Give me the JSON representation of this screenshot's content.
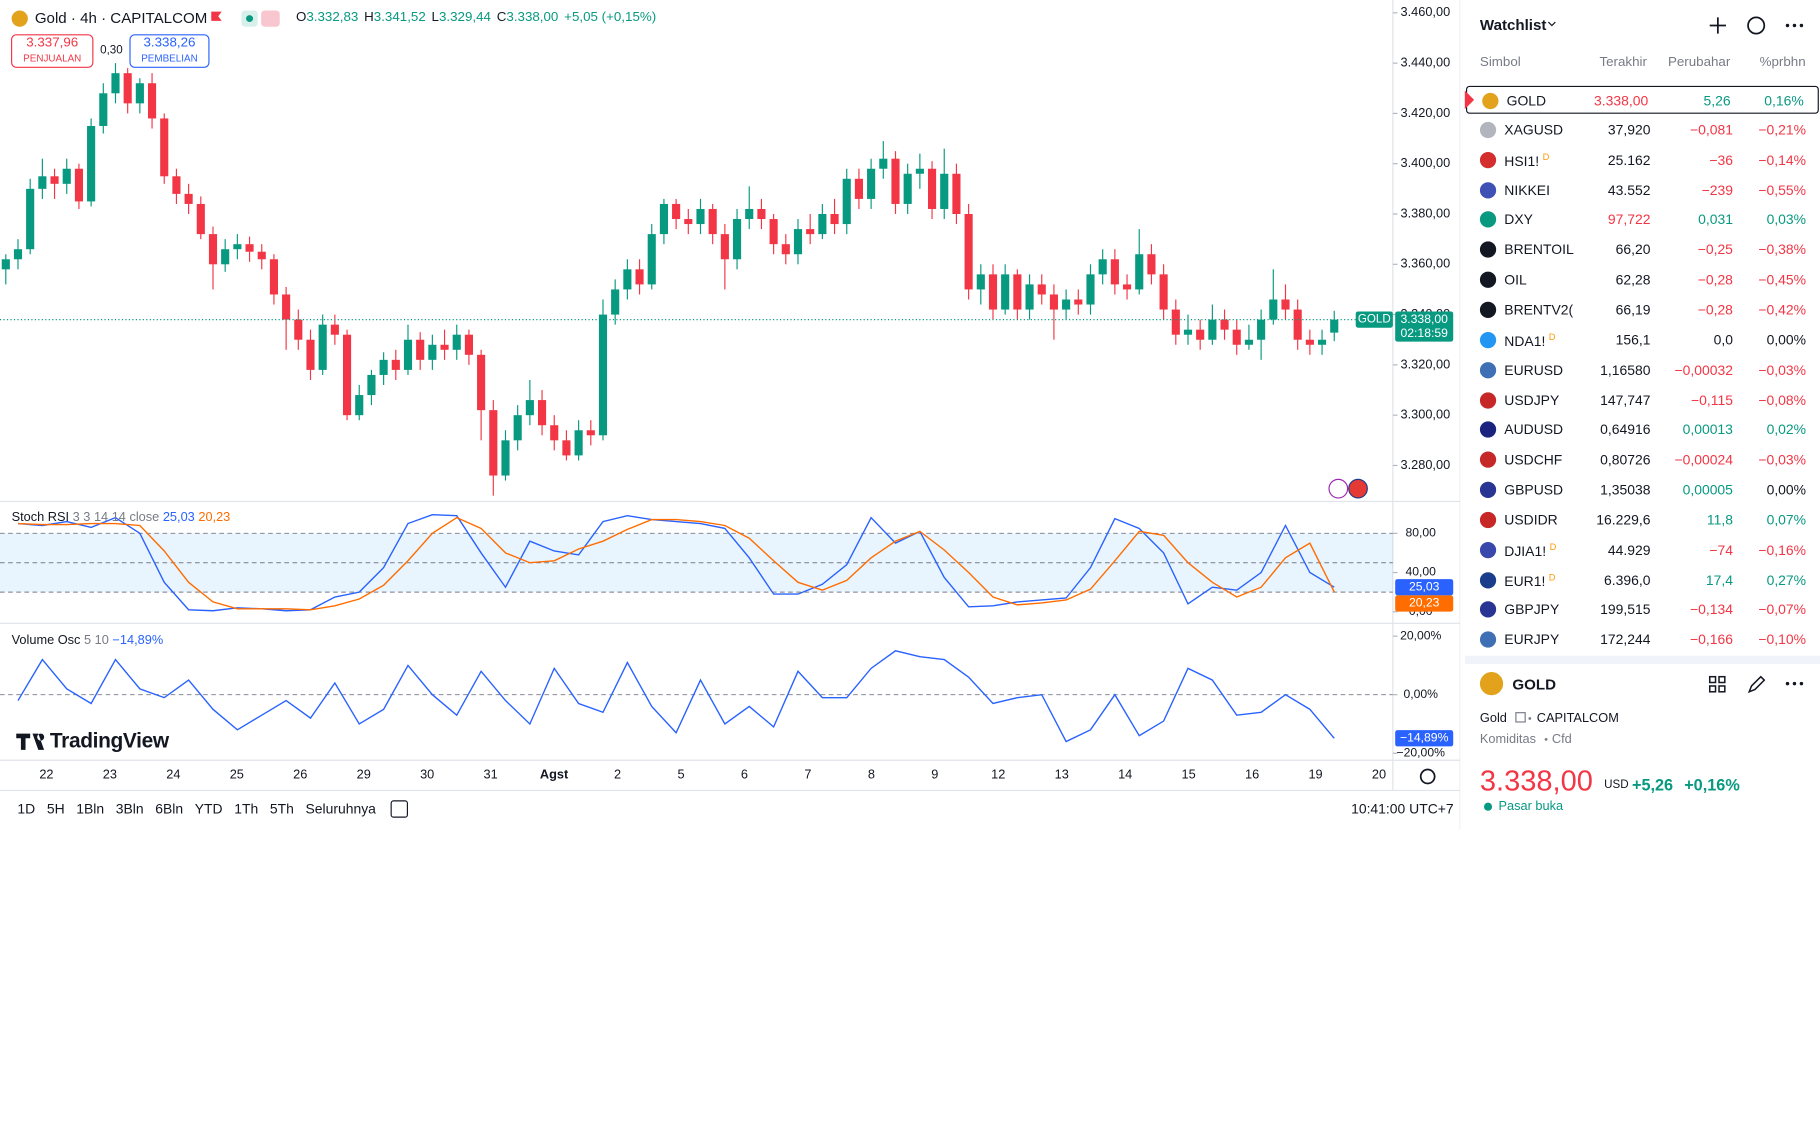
{
  "header": {
    "title": "Gold · 4h · CAPITALCOM",
    "ohlc": [
      {
        "label": "O",
        "value": "3.332,83"
      },
      {
        "label": "H",
        "value": "3.341,52"
      },
      {
        "label": "L",
        "value": "3.329,44"
      },
      {
        "label": "C",
        "value": "3.338,00"
      }
    ],
    "change": "+5,05 (+0,15%)"
  },
  "sell": {
    "price": "3.337,96",
    "label": "PENJUALAN"
  },
  "spread": "0,30",
  "buy": {
    "price": "3.338,26",
    "label": "PEMBELIAN"
  },
  "chart": {
    "type": "candlestick",
    "up_color": "#089981",
    "down_color": "#f23645",
    "ylim": [
      3265.7,
      3465.1
    ],
    "yticks": [
      {
        "value": 3280,
        "label": "3.280,00"
      },
      {
        "value": 3300,
        "label": "3.300,00"
      },
      {
        "value": 3320,
        "label": "3.320,00"
      },
      {
        "value": 3340,
        "label": "3.340,00"
      },
      {
        "value": 3360,
        "label": "3.360,00"
      },
      {
        "value": 3380,
        "label": "3.380,00"
      },
      {
        "value": 3400,
        "label": "3.400,00"
      },
      {
        "value": 3420,
        "label": "3.420,00"
      },
      {
        "value": 3440,
        "label": "3.440,00"
      },
      {
        "value": 3460,
        "label": "3.460,00"
      }
    ],
    "x_labels": [
      "22",
      "23",
      "24",
      "25",
      "26",
      "29",
      "30",
      "31",
      "Agst",
      "2",
      "5",
      "6",
      "7",
      "8",
      "9",
      "12",
      "13",
      "14",
      "15",
      "16",
      "19",
      "20"
    ],
    "last_price": {
      "name": "GOLD",
      "value": 3338,
      "label": "3.338,00",
      "countdown": "02:18:59"
    },
    "candles": [
      [
        3358,
        3364,
        3352,
        3362
      ],
      [
        3362,
        3370,
        3358,
        3366
      ],
      [
        3366,
        3394,
        3364,
        3390
      ],
      [
        3390,
        3402,
        3386,
        3395
      ],
      [
        3395,
        3398,
        3386,
        3392
      ],
      [
        3392,
        3402,
        3388,
        3398
      ],
      [
        3398,
        3400,
        3382,
        3385
      ],
      [
        3385,
        3418,
        3383,
        3415
      ],
      [
        3415,
        3432,
        3412,
        3428
      ],
      [
        3428,
        3440,
        3424,
        3436
      ],
      [
        3436,
        3438,
        3420,
        3424
      ],
      [
        3424,
        3434,
        3420,
        3432
      ],
      [
        3432,
        3436,
        3414,
        3418
      ],
      [
        3418,
        3420,
        3392,
        3395
      ],
      [
        3395,
        3398,
        3384,
        3388
      ],
      [
        3388,
        3392,
        3380,
        3384
      ],
      [
        3384,
        3387,
        3370,
        3372
      ],
      [
        3372,
        3375,
        3350,
        3360
      ],
      [
        3360,
        3370,
        3357,
        3366
      ],
      [
        3366,
        3372,
        3362,
        3368
      ],
      [
        3368,
        3371,
        3361,
        3365
      ],
      [
        3365,
        3368,
        3358,
        3362
      ],
      [
        3362,
        3364,
        3344,
        3348
      ],
      [
        3348,
        3351,
        3326,
        3338
      ],
      [
        3338,
        3342,
        3326,
        3330
      ],
      [
        3330,
        3334,
        3314,
        3318
      ],
      [
        3318,
        3340,
        3316,
        3336
      ],
      [
        3336,
        3340,
        3328,
        3332
      ],
      [
        3332,
        3334,
        3298,
        3300
      ],
      [
        3300,
        3312,
        3298,
        3308
      ],
      [
        3308,
        3318,
        3304,
        3316
      ],
      [
        3316,
        3325,
        3312,
        3322
      ],
      [
        3322,
        3326,
        3314,
        3318
      ],
      [
        3318,
        3336,
        3316,
        3330
      ],
      [
        3330,
        3333,
        3318,
        3322
      ],
      [
        3322,
        3332,
        3318,
        3328
      ],
      [
        3328,
        3334,
        3322,
        3326
      ],
      [
        3326,
        3336,
        3322,
        3332
      ],
      [
        3332,
        3334,
        3320,
        3324
      ],
      [
        3324,
        3326,
        3290,
        3302
      ],
      [
        3302,
        3306,
        3268,
        3276
      ],
      [
        3276,
        3294,
        3274,
        3290
      ],
      [
        3290,
        3304,
        3286,
        3300
      ],
      [
        3300,
        3314,
        3296,
        3306
      ],
      [
        3306,
        3310,
        3292,
        3296
      ],
      [
        3296,
        3300,
        3286,
        3290
      ],
      [
        3290,
        3294,
        3282,
        3284
      ],
      [
        3284,
        3298,
        3282,
        3294
      ],
      [
        3294,
        3298,
        3288,
        3292
      ],
      [
        3292,
        3346,
        3290,
        3340
      ],
      [
        3340,
        3354,
        3336,
        3350
      ],
      [
        3350,
        3362,
        3346,
        3358
      ],
      [
        3358,
        3362,
        3348,
        3352
      ],
      [
        3352,
        3376,
        3350,
        3372
      ],
      [
        3372,
        3386,
        3368,
        3384
      ],
      [
        3384,
        3386,
        3374,
        3378
      ],
      [
        3378,
        3382,
        3372,
        3376
      ],
      [
        3376,
        3386,
        3372,
        3382
      ],
      [
        3382,
        3384,
        3368,
        3372
      ],
      [
        3372,
        3376,
        3350,
        3362
      ],
      [
        3362,
        3382,
        3358,
        3378
      ],
      [
        3378,
        3391,
        3374,
        3382
      ],
      [
        3382,
        3386,
        3374,
        3378
      ],
      [
        3378,
        3380,
        3364,
        3368
      ],
      [
        3368,
        3372,
        3360,
        3364
      ],
      [
        3364,
        3378,
        3360,
        3374
      ],
      [
        3374,
        3380,
        3368,
        3372
      ],
      [
        3372,
        3384,
        3370,
        3380
      ],
      [
        3380,
        3386,
        3372,
        3376
      ],
      [
        3376,
        3398,
        3372,
        3394
      ],
      [
        3394,
        3398,
        3382,
        3386
      ],
      [
        3386,
        3402,
        3382,
        3398
      ],
      [
        3398,
        3409,
        3394,
        3402
      ],
      [
        3402,
        3405,
        3380,
        3384
      ],
      [
        3384,
        3400,
        3380,
        3396
      ],
      [
        3396,
        3404,
        3390,
        3398
      ],
      [
        3398,
        3401,
        3378,
        3382
      ],
      [
        3382,
        3406,
        3378,
        3396
      ],
      [
        3396,
        3400,
        3376,
        3380
      ],
      [
        3380,
        3384,
        3346,
        3350
      ],
      [
        3350,
        3360,
        3344,
        3356
      ],
      [
        3356,
        3360,
        3338,
        3342
      ],
      [
        3342,
        3360,
        3340,
        3356
      ],
      [
        3356,
        3358,
        3338,
        3342
      ],
      [
        3342,
        3356,
        3338,
        3352
      ],
      [
        3352,
        3356,
        3344,
        3348
      ],
      [
        3348,
        3352,
        3330,
        3342
      ],
      [
        3342,
        3350,
        3338,
        3346
      ],
      [
        3346,
        3350,
        3340,
        3344
      ],
      [
        3344,
        3360,
        3340,
        3356
      ],
      [
        3356,
        3366,
        3352,
        3362
      ],
      [
        3362,
        3366,
        3348,
        3352
      ],
      [
        3352,
        3356,
        3346,
        3350
      ],
      [
        3350,
        3374,
        3348,
        3364
      ],
      [
        3364,
        3368,
        3352,
        3356
      ],
      [
        3356,
        3360,
        3338,
        3342
      ],
      [
        3342,
        3346,
        3328,
        3332
      ],
      [
        3332,
        3340,
        3328,
        3334
      ],
      [
        3334,
        3338,
        3326,
        3330
      ],
      [
        3330,
        3344,
        3328,
        3338
      ],
      [
        3338,
        3342,
        3330,
        3334
      ],
      [
        3334,
        3338,
        3324,
        3328
      ],
      [
        3328,
        3336,
        3326,
        3330
      ],
      [
        3330,
        3342,
        3322,
        3338
      ],
      [
        3338,
        3358,
        3336,
        3346
      ],
      [
        3346,
        3352,
        3338,
        3342
      ],
      [
        3342,
        3346,
        3326,
        3330
      ],
      [
        3330,
        3334,
        3324,
        3328
      ],
      [
        3328,
        3334,
        3324,
        3330
      ],
      [
        3332.83,
        3341.52,
        3329.44,
        3338
      ]
    ]
  },
  "stoch_rsi": {
    "type": "line",
    "title": "Stoch RSI",
    "params": "3 3 14 14 close",
    "ylim": [
      -13,
      109
    ],
    "yticks": [
      {
        "value": 80,
        "label": "80,00"
      },
      {
        "value": 40,
        "label": "40,00"
      },
      {
        "value": 0,
        "label": "0,00"
      }
    ],
    "band_levels": [
      80,
      50,
      20
    ],
    "series": [
      {
        "name": "K",
        "color": "#2962ff",
        "value_label": "25,03",
        "values": [
          90,
          88,
          92,
          86,
          96,
          80,
          30,
          2,
          1,
          4,
          3,
          1,
          2,
          15,
          20,
          45,
          90,
          99,
          98,
          60,
          25,
          72,
          62,
          58,
          92,
          98,
          94,
          92,
          90,
          85,
          55,
          18,
          18,
          28,
          48,
          96,
          70,
          82,
          35,
          5,
          6,
          10,
          12,
          14,
          45,
          95,
          85,
          60,
          8,
          25,
          22,
          40,
          88,
          40,
          25.03
        ]
      },
      {
        "name": "D",
        "color": "#ff6d00",
        "value_label": "20,23",
        "values": [
          90,
          89,
          89,
          90,
          90,
          88,
          62,
          30,
          10,
          3,
          3,
          3,
          2,
          6,
          13,
          27,
          52,
          80,
          96,
          85,
          60,
          50,
          52,
          64,
          72,
          84,
          94,
          94,
          92,
          88,
          75,
          52,
          30,
          22,
          32,
          55,
          72,
          82,
          63,
          40,
          15,
          7,
          9,
          12,
          23,
          52,
          82,
          78,
          50,
          30,
          15,
          25,
          55,
          70,
          20.23
        ]
      }
    ]
  },
  "volume_osc": {
    "type": "line",
    "title": "Volume Osc",
    "params": "5 10",
    "ylim": [
      -22.4,
      24
    ],
    "yticks": [
      {
        "value": 20,
        "label": "20,00%"
      },
      {
        "value": 0,
        "label": "0,00%"
      },
      {
        "value": -20,
        "label": "−20,00%"
      }
    ],
    "series": [
      {
        "name": "Osc",
        "color": "#2962ff",
        "value_label": "−14,89%",
        "values": [
          -2,
          12,
          2,
          -3,
          12,
          2,
          -1,
          5,
          -5,
          -12,
          -7,
          -2,
          -8,
          4,
          -10,
          -5,
          10,
          0,
          -7,
          8,
          -2,
          -10,
          9,
          -3,
          -6,
          11,
          -4,
          -13,
          5,
          -10,
          -4,
          -11,
          8,
          -1,
          -1,
          9,
          15,
          13,
          12,
          6,
          -3,
          -1,
          0,
          -16,
          -12,
          0,
          -14,
          -9,
          9,
          5,
          -7,
          -6,
          0,
          -5,
          -14.89
        ]
      }
    ]
  },
  "logo": "TradingView",
  "toolbar": {
    "ranges": [
      "1D",
      "5H",
      "1Bln",
      "3Bln",
      "6Bln",
      "YTD",
      "1Th",
      "5Th",
      "Seluruhnya"
    ],
    "time": "10:41:00 UTC+7"
  },
  "watchlist": {
    "title": "Watchlist",
    "columns": [
      "Simbol",
      "Terakhir",
      "Perubahar",
      "%prbhn"
    ],
    "rows": [
      {
        "symbol": "GOLD",
        "last": "3.338,00",
        "change": "5,26",
        "pct": "0,16%",
        "icon": "#e2a21b",
        "last_color": "#f23645"
      },
      {
        "symbol": "XAGUSD",
        "last": "37,920",
        "change": "−0,081",
        "pct": "−0,21%",
        "icon": "#b2b5be"
      },
      {
        "symbol": "HSI1!",
        "flag": "D",
        "last": "25.162",
        "change": "−36",
        "pct": "−0,14%",
        "icon": "#d32f2f"
      },
      {
        "symbol": "NIKKEI",
        "last": "43.552",
        "change": "−239",
        "pct": "−0,55%",
        "icon": "#3f51b5"
      },
      {
        "symbol": "DXY",
        "last": "97,722",
        "change": "0,031",
        "pct": "0,03%",
        "icon": "#089981",
        "last_color": "#f23645"
      },
      {
        "symbol": "BRENTOIL",
        "last": "66,20",
        "change": "−0,25",
        "pct": "−0,38%",
        "icon": "#131722"
      },
      {
        "symbol": "OIL",
        "last": "62,28",
        "change": "−0,28",
        "pct": "−0,45%",
        "icon": "#131722"
      },
      {
        "symbol": "BRENTV2(",
        "last": "66,19",
        "change": "−0,28",
        "pct": "−0,42%",
        "icon": "#131722"
      },
      {
        "symbol": "NDA1!",
        "flag": "D",
        "last": "156,1",
        "change": "0,0",
        "pct": "0,00%",
        "icon": "#2196f3"
      },
      {
        "symbol": "EURUSD",
        "last": "1,16580",
        "change": "−0,00032",
        "pct": "−0,03%",
        "icon": "#3f6fb5"
      },
      {
        "symbol": "USDJPY",
        "last": "147,747",
        "change": "−0,115",
        "pct": "−0,08%",
        "icon": "#c62828"
      },
      {
        "symbol": "AUDUSD",
        "last": "0,64916",
        "change": "0,00013",
        "pct": "0,02%",
        "icon": "#1a237e"
      },
      {
        "symbol": "USDCHF",
        "last": "0,80726",
        "change": "−0,00024",
        "pct": "−0,03%",
        "icon": "#c62828"
      },
      {
        "symbol": "GBPUSD",
        "last": "1,35038",
        "change": "0,00005",
        "pct": "0,00%",
        "icon": "#283593"
      },
      {
        "symbol": "USDIDR",
        "last": "16.229,6",
        "change": "11,8",
        "pct": "0,07%",
        "icon": "#c62828"
      },
      {
        "symbol": "DJIA1!",
        "flag": "D",
        "last": "44.929",
        "change": "−74",
        "pct": "−0,16%",
        "icon": "#3949ab"
      },
      {
        "symbol": "EUR1!",
        "flag": "D",
        "last": "6.396,0",
        "change": "17,4",
        "pct": "0,27%",
        "icon": "#1a3e8c"
      },
      {
        "symbol": "GBPJPY",
        "last": "199,515",
        "change": "−0,134",
        "pct": "−0,07%",
        "icon": "#283593"
      },
      {
        "symbol": "EURJPY",
        "last": "172,244",
        "change": "−0,166",
        "pct": "−0,10%",
        "icon": "#3f6fb5"
      }
    ]
  },
  "detail": {
    "symbol": "GOLD",
    "name": "Gold",
    "exchange": "CAPITALCOM",
    "category": "Komiditas",
    "kind": "Cfd",
    "price": "3.338,00",
    "currency": "USD",
    "change": "+5,26",
    "pct": "+0,16%",
    "status": "Pasar buka"
  }
}
